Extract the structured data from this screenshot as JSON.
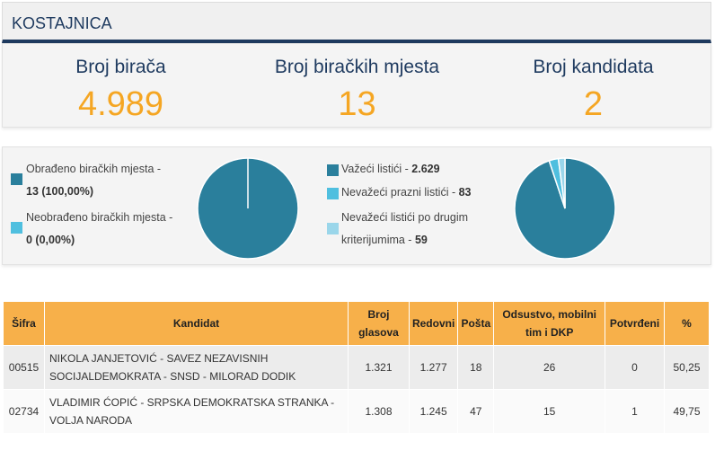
{
  "header": {
    "title": "KOSTAJNICA"
  },
  "stats": [
    {
      "label": "Broj birača",
      "value": "4.989"
    },
    {
      "label": "Broj biračkih mjesta",
      "value": "13"
    },
    {
      "label": "Broj kandidata",
      "value": "2"
    }
  ],
  "polling": {
    "processed_label": "Obrađeno biračkih mjesta -",
    "processed_value": "13 (100,00%)",
    "unprocessed_label": "Neobrađeno biračkih mjesta -",
    "unprocessed_value": "0 (0,00%)",
    "processed_fraction": 1.0,
    "colors": {
      "processed": "#2a7f9c",
      "unprocessed": "#4fbfdf"
    }
  },
  "ballots": {
    "valid_label": "Važeći listići - ",
    "valid_value": "2.629",
    "invalid_blank_label": "Nevažeći prazni listići - ",
    "invalid_blank_value": "83",
    "invalid_other_label_1": "Nevažeći listići po drugim",
    "invalid_other_label_2": "kriterijumima - ",
    "invalid_other_value": "59",
    "counts": [
      2629,
      83,
      59
    ],
    "colors": [
      "#2a7f9c",
      "#4fbfdf",
      "#9ad6ea"
    ]
  },
  "table": {
    "headers": {
      "sifra": "Šifra",
      "kandidat": "Kandidat",
      "broj_1": "Broj",
      "broj_2": "glasova",
      "redovni": "Redovni",
      "posta": "Pošta",
      "odsustvo_1": "Odsustvo, mobilni",
      "odsustvo_2": "tim i DKP",
      "potvrdjeni": "Potvrđeni",
      "pct": "%"
    },
    "rows": [
      {
        "sifra": "00515",
        "kandidat_1": "NIKOLA JANJETOVIĆ - SAVEZ NEZAVISNIH",
        "kandidat_2": "SOCIJALDEMOKRATA - SNSD - MILORAD DODIK",
        "broj": "1.321",
        "redovni": "1.277",
        "posta": "18",
        "odsustvo": "26",
        "potvrdjeni": "0",
        "pct": "50,25"
      },
      {
        "sifra": "02734",
        "kandidat_1": "VLADIMIR ĆOPIĆ - SRPSKA DEMOKRATSKA STRANKA -",
        "kandidat_2": "VOLJA NARODA",
        "broj": "1.308",
        "redovni": "1.245",
        "posta": "47",
        "odsustvo": "15",
        "potvrdjeni": "1",
        "pct": "49,75"
      }
    ]
  }
}
